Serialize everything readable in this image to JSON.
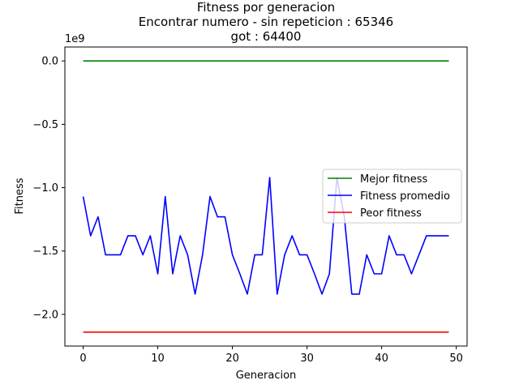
{
  "chart_data": {
    "type": "line",
    "title_lines": [
      "Fitness por generacion",
      "Encontrar numero - sin repeticion : 65346",
      "got : 64400"
    ],
    "xlabel": "Generacion",
    "ylabel": "Fitness",
    "y_offset_label": "1e9",
    "xlim": [
      -2.45,
      51.45
    ],
    "ylim": [
      -2.25,
      0.11
    ],
    "y_unit_multiplier": 1000000000,
    "x_ticks": [
      0,
      10,
      20,
      30,
      40,
      50
    ],
    "x_tick_labels": [
      "0",
      "10",
      "20",
      "30",
      "40",
      "50"
    ],
    "y_ticks": [
      0.0,
      -0.5,
      -1.0,
      -1.5,
      -2.0
    ],
    "y_tick_labels": [
      "0.0",
      "−0.5",
      "−1.0",
      "−1.5",
      "−2.0"
    ],
    "x": [
      0,
      1,
      2,
      3,
      4,
      5,
      6,
      7,
      8,
      9,
      10,
      11,
      12,
      13,
      14,
      15,
      16,
      17,
      18,
      19,
      20,
      21,
      22,
      23,
      24,
      25,
      26,
      27,
      28,
      29,
      30,
      31,
      32,
      33,
      34,
      35,
      36,
      37,
      38,
      39,
      40,
      41,
      42,
      43,
      44,
      45,
      46,
      47,
      48,
      49
    ],
    "series": [
      {
        "name": "Mejor fitness",
        "color": "#008000",
        "values": [
          0,
          0,
          0,
          0,
          0,
          0,
          0,
          0,
          0,
          0,
          0,
          0,
          0,
          0,
          0,
          0,
          0,
          0,
          0,
          0,
          0,
          0,
          0,
          0,
          0,
          0,
          0,
          0,
          0,
          0,
          0,
          0,
          0,
          0,
          0,
          0,
          0,
          0,
          0,
          0,
          0,
          0,
          0,
          0,
          0,
          0,
          0,
          0,
          0,
          0
        ]
      },
      {
        "name": "Fitness promedio",
        "color": "#0000ff",
        "values": [
          -1.07,
          -1.38,
          -1.23,
          -1.53,
          -1.53,
          -1.53,
          -1.38,
          -1.38,
          -1.53,
          -1.38,
          -1.68,
          -1.07,
          -1.68,
          -1.38,
          -1.53,
          -1.84,
          -1.53,
          -1.07,
          -1.23,
          -1.23,
          -1.53,
          -1.68,
          -1.84,
          -1.53,
          -1.53,
          -0.92,
          -1.84,
          -1.53,
          -1.38,
          -1.53,
          -1.53,
          -1.68,
          -1.84,
          -1.68,
          -0.92,
          -1.23,
          -1.84,
          -1.84,
          -1.53,
          -1.68,
          -1.68,
          -1.38,
          -1.53,
          -1.53,
          -1.68,
          -1.53,
          -1.38,
          -1.38,
          -1.38,
          -1.38
        ]
      },
      {
        "name": "Peor fitness",
        "color": "#ff0000",
        "values": [
          -2.14,
          -2.14,
          -2.14,
          -2.14,
          -2.14,
          -2.14,
          -2.14,
          -2.14,
          -2.14,
          -2.14,
          -2.14,
          -2.14,
          -2.14,
          -2.14,
          -2.14,
          -2.14,
          -2.14,
          -2.14,
          -2.14,
          -2.14,
          -2.14,
          -2.14,
          -2.14,
          -2.14,
          -2.14,
          -2.14,
          -2.14,
          -2.14,
          -2.14,
          -2.14,
          -2.14,
          -2.14,
          -2.14,
          -2.14,
          -2.14,
          -2.14,
          -2.14,
          -2.14,
          -2.14,
          -2.14,
          -2.14,
          -2.14,
          -2.14,
          -2.14,
          -2.14,
          -2.14,
          -2.14,
          -2.14,
          -2.14,
          -2.14
        ]
      }
    ],
    "legend_position": "center-right",
    "grid": false
  }
}
